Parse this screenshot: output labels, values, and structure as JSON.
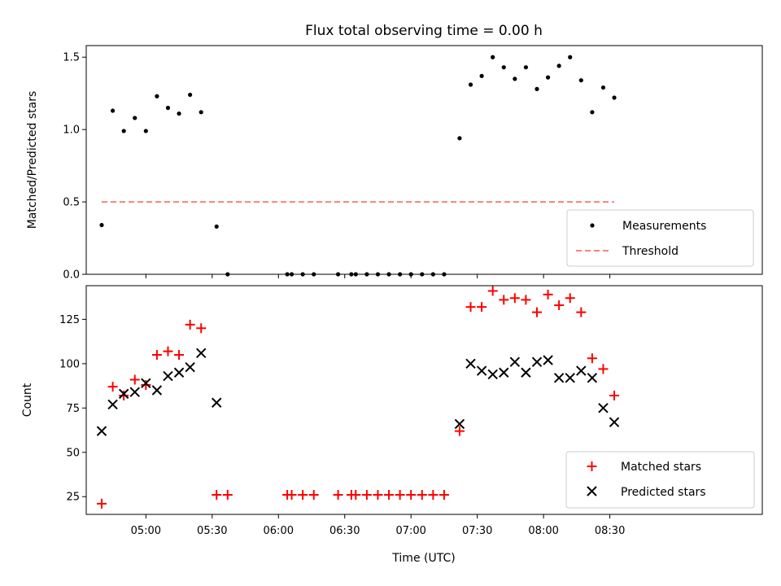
{
  "title": "Flux total observing time = 0.00 h",
  "chart_data": [
    {
      "type": "scatter",
      "ylabel": "Matched/Predicted stars",
      "xlabel": "",
      "xlim_minutes": [
        273,
        579
      ],
      "ylim": [
        0,
        1.58
      ],
      "yticks": [
        0.0,
        0.5,
        1.0,
        1.5
      ],
      "ytick_labels": [
        "0.0",
        "0.5",
        "1.0",
        "1.5"
      ],
      "xticks_minutes": [
        300,
        330,
        360,
        390,
        420,
        450,
        480,
        510
      ],
      "legend_position": "lower-right",
      "series": [
        {
          "name": "Measurements",
          "marker": "dot",
          "color": "#000000",
          "x": [
            "04:40",
            "04:45",
            "04:50",
            "04:55",
            "05:00",
            "05:05",
            "05:10",
            "05:15",
            "05:20",
            "05:25",
            "05:32",
            "05:37",
            "06:04",
            "06:06",
            "06:11",
            "06:16",
            "06:27",
            "06:33",
            "06:35",
            "06:40",
            "06:45",
            "06:50",
            "06:55",
            "07:00",
            "07:05",
            "07:10",
            "07:15",
            "07:22",
            "07:27",
            "07:32",
            "07:37",
            "07:42",
            "07:47",
            "07:52",
            "07:57",
            "08:02",
            "08:07",
            "08:12",
            "08:17",
            "08:22",
            "08:27",
            "08:32"
          ],
          "y": [
            0.34,
            1.13,
            0.99,
            1.08,
            0.99,
            1.23,
            1.15,
            1.11,
            1.24,
            1.12,
            0.33,
            0.0,
            0.0,
            0.0,
            0.0,
            0.0,
            0.0,
            0.0,
            0.0,
            0.0,
            0.0,
            0.0,
            0.0,
            0.0,
            0.0,
            0.0,
            0.0,
            0.94,
            1.31,
            1.37,
            1.5,
            1.43,
            1.35,
            1.43,
            1.28,
            1.36,
            1.44,
            1.5,
            1.34,
            1.12,
            1.29,
            1.22
          ]
        },
        {
          "name": "Threshold",
          "marker": "dashed-line",
          "color": "#ff7f7f",
          "x": [
            "04:40",
            "08:32"
          ],
          "y": [
            0.5,
            0.5
          ]
        }
      ]
    },
    {
      "type": "scatter",
      "ylabel": "Count",
      "xlabel": "Time (UTC)",
      "xlim_minutes": [
        273,
        579
      ],
      "ylim": [
        15,
        144
      ],
      "yticks": [
        25,
        50,
        75,
        100,
        125
      ],
      "ytick_labels": [
        "25",
        "50",
        "75",
        "100",
        "125"
      ],
      "xticks_minutes": [
        300,
        330,
        360,
        390,
        420,
        450,
        480,
        510
      ],
      "xtick_labels": [
        "05:00",
        "05:30",
        "06:00",
        "06:30",
        "07:00",
        "07:30",
        "08:00",
        "08:30"
      ],
      "legend_position": "lower-right",
      "series": [
        {
          "name": "Matched stars",
          "marker": "plus",
          "color": "#ff0000",
          "x": [
            "04:40",
            "04:45",
            "04:50",
            "04:55",
            "05:00",
            "05:05",
            "05:10",
            "05:15",
            "05:20",
            "05:25",
            "05:32",
            "05:37",
            "06:04",
            "06:06",
            "06:11",
            "06:16",
            "06:27",
            "06:33",
            "06:35",
            "06:40",
            "06:45",
            "06:50",
            "06:55",
            "07:00",
            "07:05",
            "07:10",
            "07:15",
            "07:22",
            "07:27",
            "07:32",
            "07:37",
            "07:42",
            "07:47",
            "07:52",
            "07:57",
            "08:02",
            "08:07",
            "08:12",
            "08:17",
            "08:22",
            "08:27",
            "08:32"
          ],
          "y": [
            21,
            87,
            82,
            91,
            88,
            105,
            107,
            105,
            122,
            120,
            26,
            26,
            26,
            26,
            26,
            26,
            26,
            26,
            26,
            26,
            26,
            26,
            26,
            26,
            26,
            26,
            26,
            62,
            132,
            132,
            141,
            136,
            137,
            136,
            129,
            139,
            133,
            137,
            129,
            103,
            97,
            82
          ]
        },
        {
          "name": "Predicted stars",
          "marker": "x",
          "color": "#000000",
          "x": [
            "04:40",
            "04:45",
            "04:50",
            "04:55",
            "05:00",
            "05:05",
            "05:10",
            "05:15",
            "05:20",
            "05:25",
            "05:32",
            "07:22",
            "07:27",
            "07:32",
            "07:37",
            "07:42",
            "07:47",
            "07:52",
            "07:57",
            "08:02",
            "08:07",
            "08:12",
            "08:17",
            "08:22",
            "08:27",
            "08:32"
          ],
          "y": [
            62,
            77,
            83,
            84,
            89,
            85,
            93,
            95,
            98,
            106,
            78,
            66,
            100,
            96,
            94,
            95,
            101,
            95,
            101,
            102,
            92,
            92,
            96,
            92,
            75,
            67
          ]
        }
      ]
    }
  ]
}
